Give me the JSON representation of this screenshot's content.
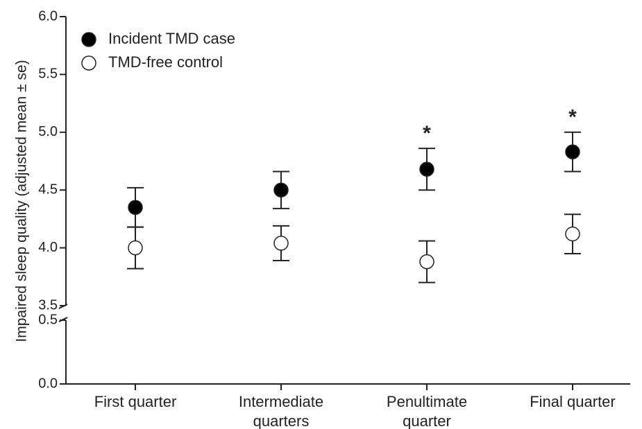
{
  "chart_data": {
    "type": "errorbar",
    "y_label": "Impaired sleep quality  (adjusted mean ± se)",
    "categories": [
      "First quarter",
      "Intermediate quarters",
      "Penultimate quarter",
      "Final quarter"
    ],
    "series": [
      {
        "name": "Incident TMD case",
        "color": "#000000",
        "values": [
          4.35,
          4.5,
          4.68,
          4.83
        ],
        "errors": [
          0.17,
          0.16,
          0.18,
          0.17
        ]
      },
      {
        "name": "TMD-free control",
        "color": "#ffffff",
        "values": [
          4.0,
          4.04,
          3.88,
          4.12
        ],
        "errors": [
          0.18,
          0.15,
          0.18,
          0.17
        ]
      }
    ],
    "significance": [
      null,
      null,
      "*",
      "*"
    ],
    "ylim": [
      0,
      6
    ],
    "axis_break": [
      0.5,
      3.5
    ],
    "yticks": [
      {
        "value": 0,
        "label": "0.0"
      },
      0.5,
      3.5,
      {
        "value": 4,
        "label": "4.0"
      },
      4.5,
      {
        "value": 5,
        "label": "5.0"
      },
      5.5,
      {
        "value": 6,
        "label": "6.0"
      }
    ],
    "legend": "upper left"
  }
}
